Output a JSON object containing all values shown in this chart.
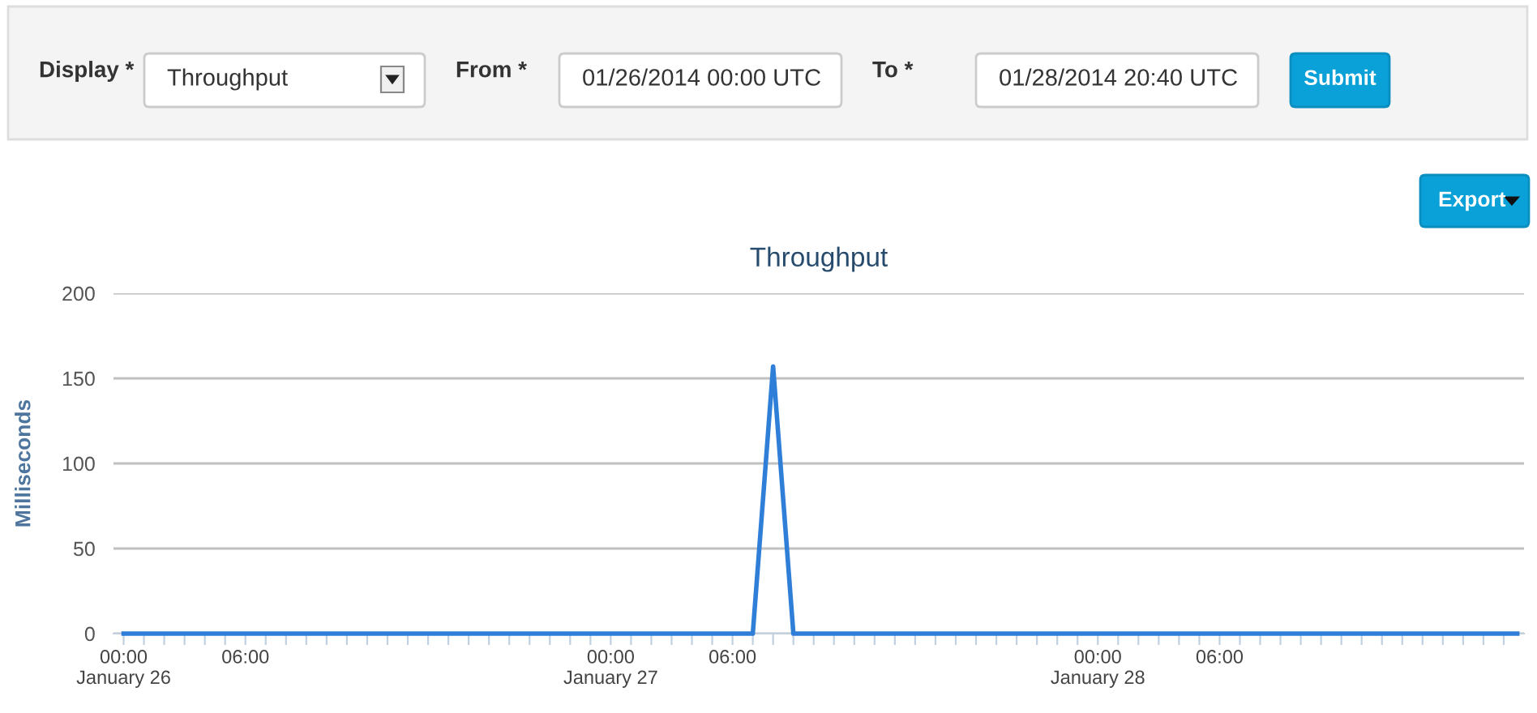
{
  "chart_data": [
    {
      "type": "other",
      "annotations": [
        "Display *",
        "Throughput",
        "From *",
        "01/26/2014 00:00 UTC",
        "To *",
        "01/28/2014 20:40 UTC",
        "Submit",
        "Export"
      ]
    },
    {
      "type": "line",
      "title": "Throughput",
      "ylabel": "Milliseconds",
      "grid": "y",
      "marker": "none",
      "line_style": "solid",
      "series": [
        {
          "color": "#2f7ed8",
          "x": [
            "2014-01-26T00:00",
            "2014-01-27T07:00",
            "2014-01-27T08:00",
            "2014-01-27T09:00",
            "2014-01-28T20:40"
          ],
          "values": [
            0,
            0,
            157,
            0,
            0
          ]
        }
      ],
      "xlim": [
        "2014-01-25T23:30",
        "2014-01-28T21:00"
      ],
      "ylim": [
        0,
        200
      ],
      "yticks": [
        0,
        50,
        100,
        150,
        200
      ],
      "xticks": [
        {
          "value": "2014-01-26T00:00",
          "label": "00:00\nJanuary 26"
        },
        {
          "value": "2014-01-26T01:00",
          "label": null
        },
        {
          "value": "2014-01-26T02:00",
          "label": null
        },
        {
          "value": "2014-01-26T03:00",
          "label": null
        },
        {
          "value": "2014-01-26T04:00",
          "label": null
        },
        {
          "value": "2014-01-26T05:00",
          "label": null
        },
        {
          "value": "2014-01-26T06:00",
          "label": "06:00"
        },
        {
          "value": "2014-01-26T07:00",
          "label": null
        },
        {
          "value": "2014-01-26T08:00",
          "label": null
        },
        {
          "value": "2014-01-26T09:00",
          "label": null
        },
        {
          "value": "2014-01-26T10:00",
          "label": null
        },
        {
          "value": "2014-01-26T11:00",
          "label": null
        },
        {
          "value": "2014-01-26T12:00",
          "label": null
        },
        {
          "value": "2014-01-26T13:00",
          "label": null
        },
        {
          "value": "2014-01-26T14:00",
          "label": null
        },
        {
          "value": "2014-01-26T15:00",
          "label": null
        },
        {
          "value": "2014-01-26T16:00",
          "label": null
        },
        {
          "value": "2014-01-26T17:00",
          "label": null
        },
        {
          "value": "2014-01-26T18:00",
          "label": null
        },
        {
          "value": "2014-01-26T19:00",
          "label": null
        },
        {
          "value": "2014-01-26T20:00",
          "label": null
        },
        {
          "value": "2014-01-26T21:00",
          "label": null
        },
        {
          "value": "2014-01-26T22:00",
          "label": null
        },
        {
          "value": "2014-01-26T23:00",
          "label": null
        },
        {
          "value": "2014-01-27T00:00",
          "label": "00:00\nJanuary 27"
        },
        {
          "value": "2014-01-27T01:00",
          "label": null
        },
        {
          "value": "2014-01-27T02:00",
          "label": null
        },
        {
          "value": "2014-01-27T03:00",
          "label": null
        },
        {
          "value": "2014-01-27T04:00",
          "label": null
        },
        {
          "value": "2014-01-27T05:00",
          "label": null
        },
        {
          "value": "2014-01-27T06:00",
          "label": "06:00"
        },
        {
          "value": "2014-01-27T07:00",
          "label": null
        },
        {
          "value": "2014-01-27T08:00",
          "label": null
        },
        {
          "value": "2014-01-27T09:00",
          "label": null
        },
        {
          "value": "2014-01-27T10:00",
          "label": null
        },
        {
          "value": "2014-01-27T11:00",
          "label": null
        },
        {
          "value": "2014-01-27T12:00",
          "label": null
        },
        {
          "value": "2014-01-27T13:00",
          "label": null
        },
        {
          "value": "2014-01-27T14:00",
          "label": null
        },
        {
          "value": "2014-01-27T15:00",
          "label": null
        },
        {
          "value": "2014-01-27T16:00",
          "label": null
        },
        {
          "value": "2014-01-27T17:00",
          "label": null
        },
        {
          "value": "2014-01-27T18:00",
          "label": null
        },
        {
          "value": "2014-01-27T19:00",
          "label": null
        },
        {
          "value": "2014-01-27T20:00",
          "label": null
        },
        {
          "value": "2014-01-27T21:00",
          "label": null
        },
        {
          "value": "2014-01-27T22:00",
          "label": null
        },
        {
          "value": "2014-01-27T23:00",
          "label": null
        },
        {
          "value": "2014-01-28T00:00",
          "label": "00:00\nJanuary 28"
        },
        {
          "value": "2014-01-28T01:00",
          "label": null
        },
        {
          "value": "2014-01-28T02:00",
          "label": null
        },
        {
          "value": "2014-01-28T03:00",
          "label": null
        },
        {
          "value": "2014-01-28T04:00",
          "label": null
        },
        {
          "value": "2014-01-28T05:00",
          "label": null
        },
        {
          "value": "2014-01-28T06:00",
          "label": "06:00"
        },
        {
          "value": "2014-01-28T07:00",
          "label": null
        },
        {
          "value": "2014-01-28T08:00",
          "label": null
        },
        {
          "value": "2014-01-28T09:00",
          "label": null
        },
        {
          "value": "2014-01-28T10:00",
          "label": null
        },
        {
          "value": "2014-01-28T11:00",
          "label": null
        },
        {
          "value": "2014-01-28T12:00",
          "label": null
        },
        {
          "value": "2014-01-28T13:00",
          "label": null
        },
        {
          "value": "2014-01-28T14:00",
          "label": null
        },
        {
          "value": "2014-01-28T15:00",
          "label": null
        },
        {
          "value": "2014-01-28T16:00",
          "label": null
        },
        {
          "value": "2014-01-28T17:00",
          "label": null
        },
        {
          "value": "2014-01-28T18:00",
          "label": null
        },
        {
          "value": "2014-01-28T19:00",
          "label": null
        },
        {
          "value": "2014-01-28T20:00",
          "label": null
        }
      ]
    }
  ]
}
